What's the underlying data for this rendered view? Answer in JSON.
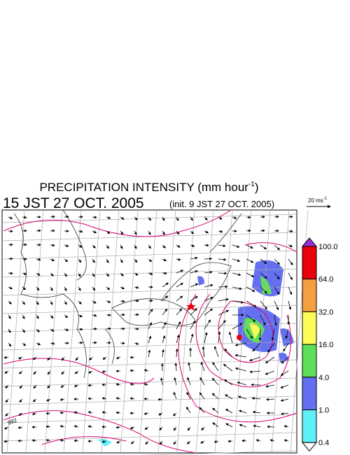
{
  "header": {
    "title": {
      "main": "PRECIPITATION INTENSITY (mm hour",
      "sup": "-1",
      "close": ")"
    },
    "valid_time": "15 JST 27 OCT. 2005",
    "init_time": "(init. 9 JST 27 OCT. 2005)"
  },
  "vector_key": {
    "label": "20 ms",
    "sup": "-1"
  },
  "map": {
    "contour_label": "992"
  },
  "colorbar": {
    "labels": [
      "100.0",
      "64.0",
      "32.0",
      "16.0",
      "4.0",
      "1.0",
      "0.4"
    ],
    "colors": [
      "#9b30d9",
      "#e8000b",
      "#f5a040",
      "#fbfb5a",
      "#5fe05a",
      "#6470f0",
      "#5ff0f8",
      "#ffffff"
    ]
  }
}
